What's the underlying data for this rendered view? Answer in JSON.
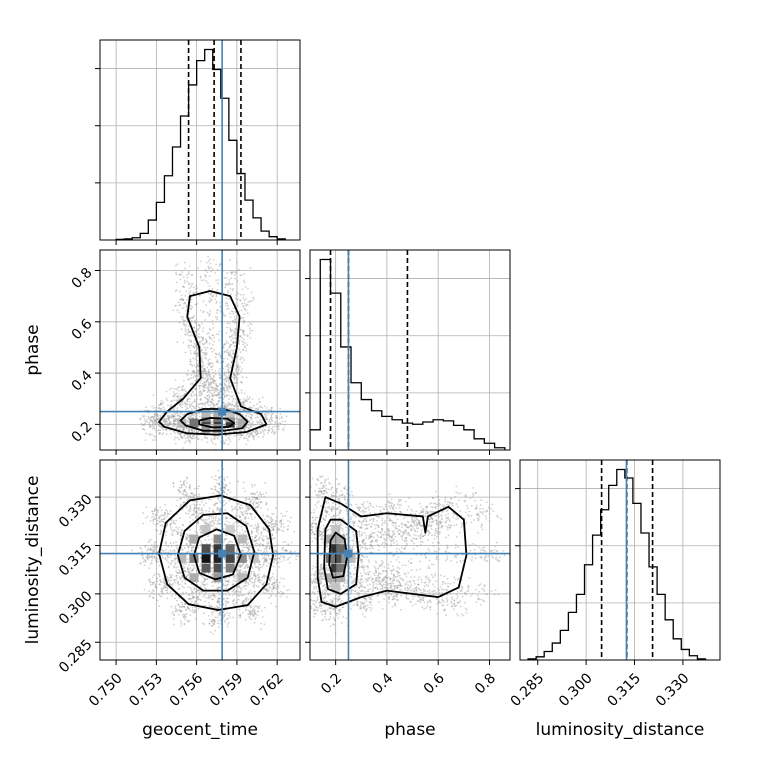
{
  "chart_data": {
    "type": "corner",
    "parameters": [
      "geocent_time",
      "phase",
      "luminosity_distance"
    ],
    "axis_labels": {
      "geocent_time": "geocent_time",
      "phase": "phase",
      "luminosity_distance": "luminosity_distance"
    },
    "ranges": {
      "geocent_time": [
        0.7488,
        0.7637
      ],
      "phase": [
        0.1,
        0.88
      ],
      "luminosity_distance": [
        0.2795,
        0.3415
      ]
    },
    "ticks": {
      "geocent_time": [
        0.75,
        0.753,
        0.756,
        0.759,
        0.762
      ],
      "phase": [
        0.2,
        0.4,
        0.6,
        0.8
      ],
      "luminosity_distance": [
        0.285,
        0.3,
        0.315,
        0.33
      ]
    },
    "tick_labels": {
      "geocent_time": [
        "0.750",
        "0.753",
        "0.756",
        "0.759",
        "0.762"
      ],
      "phase": [
        "0.2",
        "0.4",
        "0.6",
        "0.8"
      ],
      "luminosity_distance": [
        "0.285",
        "0.300",
        "0.315",
        "0.330"
      ]
    },
    "truths": {
      "geocent_time": 0.7579,
      "phase": 0.25,
      "luminosity_distance": 0.3125
    },
    "quantiles": {
      "geocent_time": [
        0.7554,
        0.7573,
        0.7593
      ],
      "phase": [
        0.18,
        0.25,
        0.48
      ],
      "luminosity_distance": [
        0.3048,
        0.3126,
        0.3206
      ]
    },
    "histograms": {
      "geocent_time": {
        "edges": [
          0.75,
          0.7506,
          0.7512,
          0.7518,
          0.7524,
          0.753,
          0.7536,
          0.7542,
          0.7548,
          0.7554,
          0.756,
          0.7566,
          0.7572,
          0.7578,
          0.7584,
          0.759,
          0.7596,
          0.7602,
          0.7608,
          0.7614,
          0.762,
          0.7626
        ],
        "counts": [
          0.5,
          1,
          2,
          6,
          18,
          34,
          58,
          84,
          112,
          140,
          162,
          172,
          154,
          128,
          90,
          60,
          36,
          20,
          8,
          3,
          1
        ]
      },
      "phase": {
        "edges": [
          0.1,
          0.14,
          0.18,
          0.22,
          0.26,
          0.3,
          0.34,
          0.38,
          0.42,
          0.46,
          0.5,
          0.54,
          0.58,
          0.62,
          0.66,
          0.7,
          0.74,
          0.78,
          0.82,
          0.86
        ],
        "counts": [
          18,
          170,
          140,
          92,
          60,
          45,
          35,
          30,
          27,
          24,
          23,
          25,
          27,
          26,
          22,
          18,
          10,
          6,
          2
        ]
      },
      "luminosity_distance": {
        "edges": [
          0.282,
          0.2845,
          0.287,
          0.2895,
          0.292,
          0.2945,
          0.297,
          0.2995,
          0.302,
          0.3045,
          0.307,
          0.3095,
          0.312,
          0.3145,
          0.317,
          0.3195,
          0.322,
          0.3245,
          0.327,
          0.3295,
          0.332,
          0.3345,
          0.337
        ],
        "counts": [
          1,
          3,
          8,
          16,
          28,
          45,
          62,
          90,
          118,
          142,
          165,
          180,
          172,
          148,
          120,
          88,
          62,
          38,
          20,
          10,
          4,
          1
        ]
      }
    },
    "panels_2d": [
      {
        "x": "geocent_time",
        "y": "phase",
        "peak": [
          0.7573,
          0.21
        ],
        "contours": [
          [
            [
              0.7536,
              0.19
            ],
            [
              0.7553,
              0.165
            ],
            [
              0.7575,
              0.16
            ],
            [
              0.7597,
              0.17
            ],
            [
              0.7612,
              0.2
            ],
            [
              0.7608,
              0.24
            ],
            [
              0.7593,
              0.27
            ],
            [
              0.7585,
              0.38
            ],
            [
              0.759,
              0.5
            ],
            [
              0.7592,
              0.62
            ],
            [
              0.7585,
              0.7
            ],
            [
              0.757,
              0.72
            ],
            [
              0.7555,
              0.7
            ],
            [
              0.7553,
              0.62
            ],
            [
              0.7562,
              0.5
            ],
            [
              0.7563,
              0.38
            ],
            [
              0.755,
              0.3
            ],
            [
              0.7538,
              0.25
            ],
            [
              0.7532,
              0.21
            ]
          ],
          [
            [
              0.7552,
              0.195
            ],
            [
              0.7565,
              0.175
            ],
            [
              0.758,
              0.175
            ],
            [
              0.7594,
              0.185
            ],
            [
              0.7598,
              0.21
            ],
            [
              0.7592,
              0.24
            ],
            [
              0.758,
              0.26
            ],
            [
              0.7565,
              0.26
            ],
            [
              0.7553,
              0.24
            ],
            [
              0.7548,
              0.215
            ]
          ],
          [
            [
              0.7562,
              0.2
            ],
            [
              0.7572,
              0.188
            ],
            [
              0.7584,
              0.19
            ],
            [
              0.7588,
              0.205
            ],
            [
              0.7583,
              0.222
            ],
            [
              0.757,
              0.225
            ],
            [
              0.7562,
              0.215
            ]
          ]
        ],
        "density_cells": [
          {
            "x": 0.7567,
            "y": 0.205,
            "level": 0.95
          },
          {
            "x": 0.7576,
            "y": 0.205,
            "level": 1.0
          },
          {
            "x": 0.7585,
            "y": 0.205,
            "level": 0.85
          },
          {
            "x": 0.7558,
            "y": 0.205,
            "level": 0.6
          },
          {
            "x": 0.7567,
            "y": 0.225,
            "level": 0.55
          },
          {
            "x": 0.7576,
            "y": 0.225,
            "level": 0.6
          },
          {
            "x": 0.7585,
            "y": 0.225,
            "level": 0.45
          },
          {
            "x": 0.7567,
            "y": 0.185,
            "level": 0.45
          },
          {
            "x": 0.7576,
            "y": 0.185,
            "level": 0.5
          },
          {
            "x": 0.7594,
            "y": 0.205,
            "level": 0.35
          },
          {
            "x": 0.7549,
            "y": 0.205,
            "level": 0.3
          },
          {
            "x": 0.7567,
            "y": 0.245,
            "level": 0.3
          },
          {
            "x": 0.7576,
            "y": 0.245,
            "level": 0.35
          },
          {
            "x": 0.7585,
            "y": 0.245,
            "level": 0.25
          }
        ]
      },
      {
        "x": "geocent_time",
        "y": "luminosity_distance",
        "peak": [
          0.7575,
          0.3115
        ],
        "contours": [
          [
            [
              0.7532,
              0.3125
            ],
            [
              0.7537,
              0.322
            ],
            [
              0.7555,
              0.329
            ],
            [
              0.7578,
              0.3305
            ],
            [
              0.76,
              0.3275
            ],
            [
              0.7614,
              0.32
            ],
            [
              0.7617,
              0.312
            ],
            [
              0.7612,
              0.303
            ],
            [
              0.7598,
              0.2965
            ],
            [
              0.7576,
              0.295
            ],
            [
              0.7554,
              0.2968
            ],
            [
              0.7538,
              0.303
            ]
          ],
          [
            [
              0.7546,
              0.312
            ],
            [
              0.7551,
              0.3195
            ],
            [
              0.7565,
              0.3245
            ],
            [
              0.7583,
              0.325
            ],
            [
              0.7597,
              0.321
            ],
            [
              0.7603,
              0.313
            ],
            [
              0.7598,
              0.305
            ],
            [
              0.7583,
              0.301
            ],
            [
              0.7565,
              0.301
            ],
            [
              0.7551,
              0.305
            ]
          ],
          [
            [
              0.7558,
              0.312
            ],
            [
              0.7562,
              0.3175
            ],
            [
              0.7575,
              0.32
            ],
            [
              0.7588,
              0.318
            ],
            [
              0.7593,
              0.312
            ],
            [
              0.7587,
              0.306
            ],
            [
              0.7574,
              0.3045
            ],
            [
              0.7562,
              0.3065
            ]
          ]
        ],
        "density_cells": [
          {
            "x": 0.7567,
            "y": 0.311,
            "level": 1.0
          },
          {
            "x": 0.7576,
            "y": 0.311,
            "level": 0.95
          },
          {
            "x": 0.7585,
            "y": 0.311,
            "level": 0.8
          },
          {
            "x": 0.7567,
            "y": 0.314,
            "level": 0.75
          },
          {
            "x": 0.7576,
            "y": 0.314,
            "level": 0.85
          },
          {
            "x": 0.7585,
            "y": 0.314,
            "level": 0.65
          },
          {
            "x": 0.7567,
            "y": 0.308,
            "level": 0.7
          },
          {
            "x": 0.7576,
            "y": 0.308,
            "level": 0.75
          },
          {
            "x": 0.7585,
            "y": 0.308,
            "level": 0.55
          },
          {
            "x": 0.7558,
            "y": 0.311,
            "level": 0.55
          },
          {
            "x": 0.7594,
            "y": 0.311,
            "level": 0.5
          },
          {
            "x": 0.7558,
            "y": 0.317,
            "level": 0.35
          },
          {
            "x": 0.7576,
            "y": 0.317,
            "level": 0.5
          },
          {
            "x": 0.7594,
            "y": 0.317,
            "level": 0.3
          },
          {
            "x": 0.7558,
            "y": 0.305,
            "level": 0.35
          },
          {
            "x": 0.7576,
            "y": 0.305,
            "level": 0.45
          },
          {
            "x": 0.7594,
            "y": 0.305,
            "level": 0.3
          },
          {
            "x": 0.7549,
            "y": 0.311,
            "level": 0.3
          },
          {
            "x": 0.7603,
            "y": 0.311,
            "level": 0.25
          },
          {
            "x": 0.7567,
            "y": 0.32,
            "level": 0.25
          },
          {
            "x": 0.7585,
            "y": 0.32,
            "level": 0.2
          }
        ]
      },
      {
        "x": "phase",
        "y": "luminosity_distance",
        "peak": [
          0.21,
          0.3115
        ],
        "contours": [
          [
            [
              0.13,
              0.32
            ],
            [
              0.13,
              0.305
            ],
            [
              0.145,
              0.2975
            ],
            [
              0.2,
              0.296
            ],
            [
              0.3,
              0.299
            ],
            [
              0.4,
              0.301
            ],
            [
              0.5,
              0.3
            ],
            [
              0.6,
              0.299
            ],
            [
              0.68,
              0.302
            ],
            [
              0.71,
              0.312
            ],
            [
              0.7,
              0.323
            ],
            [
              0.64,
              0.327
            ],
            [
              0.56,
              0.324
            ],
            [
              0.55,
              0.319
            ],
            [
              0.54,
              0.324
            ],
            [
              0.4,
              0.325
            ],
            [
              0.3,
              0.324
            ],
            [
              0.22,
              0.328
            ],
            [
              0.16,
              0.33
            ]
          ],
          [
            [
              0.16,
              0.32
            ],
            [
              0.155,
              0.308
            ],
            [
              0.17,
              0.3015
            ],
            [
              0.22,
              0.3
            ],
            [
              0.28,
              0.303
            ],
            [
              0.29,
              0.312
            ],
            [
              0.28,
              0.3195
            ],
            [
              0.22,
              0.323
            ],
            [
              0.18,
              0.323
            ]
          ],
          [
            [
              0.18,
              0.3165
            ],
            [
              0.175,
              0.309
            ],
            [
              0.19,
              0.305
            ],
            [
              0.23,
              0.3055
            ],
            [
              0.245,
              0.3115
            ],
            [
              0.235,
              0.317
            ],
            [
              0.2,
              0.319
            ]
          ]
        ],
        "density_cells": [
          {
            "x": 0.2,
            "y": 0.311,
            "level": 1.0
          },
          {
            "x": 0.2,
            "y": 0.314,
            "level": 0.9
          },
          {
            "x": 0.2,
            "y": 0.308,
            "level": 0.85
          },
          {
            "x": 0.22,
            "y": 0.311,
            "level": 0.75
          },
          {
            "x": 0.22,
            "y": 0.314,
            "level": 0.65
          },
          {
            "x": 0.22,
            "y": 0.308,
            "level": 0.6
          },
          {
            "x": 0.18,
            "y": 0.311,
            "level": 0.6
          },
          {
            "x": 0.2,
            "y": 0.317,
            "level": 0.55
          },
          {
            "x": 0.2,
            "y": 0.305,
            "level": 0.55
          },
          {
            "x": 0.24,
            "y": 0.311,
            "level": 0.45
          },
          {
            "x": 0.26,
            "y": 0.311,
            "level": 0.3
          },
          {
            "x": 0.22,
            "y": 0.317,
            "level": 0.35
          },
          {
            "x": 0.22,
            "y": 0.305,
            "level": 0.35
          },
          {
            "x": 0.18,
            "y": 0.317,
            "level": 0.35
          },
          {
            "x": 0.18,
            "y": 0.305,
            "level": 0.35
          },
          {
            "x": 0.2,
            "y": 0.32,
            "level": 0.25
          },
          {
            "x": 0.2,
            "y": 0.302,
            "level": 0.25
          }
        ]
      }
    ],
    "colors": {
      "truth": "#4682b4",
      "hist": "#000000",
      "contour": "#000000",
      "scatter": "#9a9a9a",
      "grid": "#b0b0b0"
    },
    "grid": true
  }
}
